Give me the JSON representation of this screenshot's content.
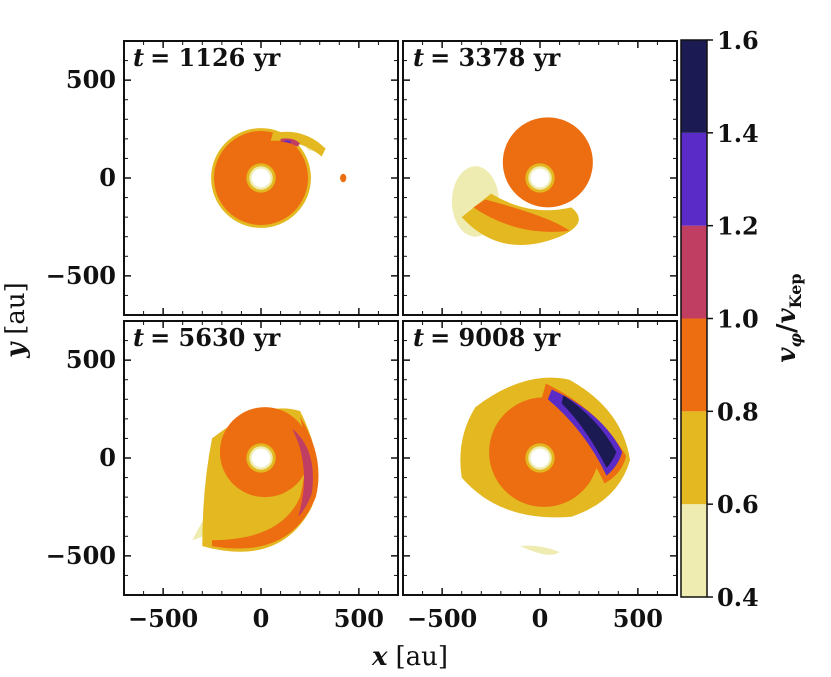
{
  "chart_data": {
    "type": "contour",
    "xlabel_var": "x",
    "xlabel_unit": "[au]",
    "ylabel_var": "y",
    "ylabel_unit": "[au]",
    "xlim": [
      -700,
      700
    ],
    "ylim": [
      -700,
      700
    ],
    "x_ticks": [
      -500,
      0,
      500
    ],
    "x_tick_labels": [
      "−500",
      "0",
      "500"
    ],
    "y_ticks": [
      -500,
      0,
      500
    ],
    "y_tick_labels": [
      "−500",
      "0",
      "500"
    ],
    "panels": [
      {
        "title": "t = 1126 yr",
        "t_label": "t",
        "t_value": "= 1126 yr"
      },
      {
        "title": "t = 3378 yr",
        "t_label": "t",
        "t_value": "= 3378 yr"
      },
      {
        "title": "t = 5630 yr",
        "t_label": "t",
        "t_value": "= 5630 yr"
      },
      {
        "title": "t = 9008 yr",
        "t_label": "t",
        "t_value": "= 9008 yr"
      }
    ],
    "colorbar": {
      "label_main": "v",
      "label_sub_num": "φ",
      "label_slash": "/",
      "label_main2": "v",
      "label_sub_den": "Kep",
      "levels": [
        0.4,
        0.6,
        0.8,
        1.0,
        1.2,
        1.4,
        1.6
      ],
      "tick_labels": [
        "0.4",
        "0.6",
        "0.8",
        "1.0",
        "1.2",
        "1.4",
        "1.6"
      ],
      "colors": [
        "#efecb2",
        "#e3b820",
        "#ec6e10",
        "#c13e63",
        "#5b2bc8",
        "#1b1a53"
      ]
    }
  }
}
